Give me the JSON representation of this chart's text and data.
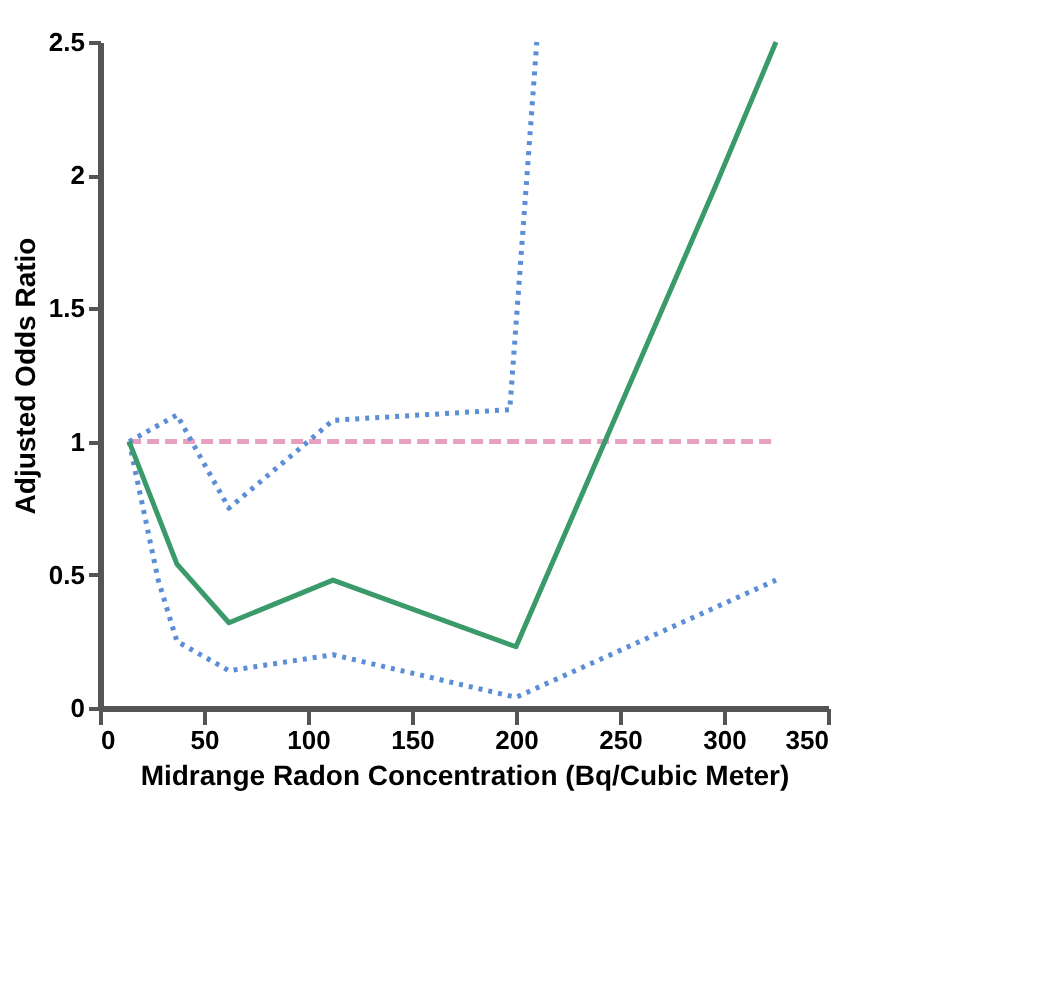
{
  "chart_data": {
    "type": "line",
    "xlabel": "Midrange Radon Concentration (Bq/Cubic Meter)",
    "ylabel": "Adjusted Odds Ratio",
    "xlim": [
      0,
      350
    ],
    "xticks": [
      0,
      50,
      100,
      150,
      200,
      250,
      300,
      350
    ],
    "ylim": [
      0,
      2.5
    ],
    "yticks": [
      0,
      0.5,
      1,
      1.5,
      2,
      2.5
    ],
    "grid": false,
    "series": [
      {
        "color": "#e8a0c0",
        "line_style": "dashed",
        "x": [
          14,
          325
        ],
        "values": [
          1,
          1
        ]
      },
      {
        "color": "#5b8ed6",
        "line_style": "dotted",
        "x": [
          14,
          37,
          62,
          100,
          112,
          197,
          210
        ],
        "values": [
          1.0,
          1.1,
          0.75,
          1.0,
          1.08,
          1.12,
          2.5
        ]
      },
      {
        "color": "#5b8ed6",
        "line_style": "dotted",
        "x": [
          14,
          28,
          37,
          62,
          112,
          200,
          325
        ],
        "values": [
          1.0,
          0.48,
          0.25,
          0.14,
          0.2,
          0.04,
          0.48
        ]
      },
      {
        "color": "#3a9a6a",
        "line_style": "solid",
        "x": [
          14,
          37,
          62,
          112,
          200,
          296,
          325
        ],
        "values": [
          1.0,
          0.54,
          0.32,
          0.48,
          0.23,
          1.96,
          2.5
        ]
      }
    ]
  }
}
